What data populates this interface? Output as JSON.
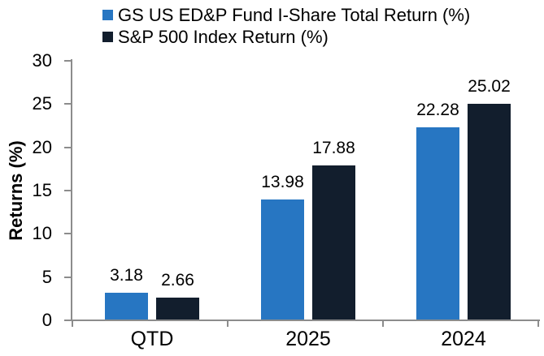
{
  "chart_data": {
    "type": "bar",
    "title": "",
    "xlabel": "",
    "ylabel": "Returns (%)",
    "ylim": [
      0,
      30
    ],
    "yticks": [
      0,
      5,
      10,
      15,
      20,
      25,
      30
    ],
    "grid": false,
    "legend_position": "top",
    "axis_color": "#8c8c8c",
    "text_color": "#000000",
    "categories": [
      "QTD",
      "2025",
      "2024"
    ],
    "series": [
      {
        "key": "fund",
        "name": "GS US ED&P Fund I-Share Total Return (%)",
        "color": "#2776c2",
        "values": [
          3.18,
          13.98,
          22.28
        ],
        "labels": [
          "3.18",
          "13.98",
          "22.28"
        ]
      },
      {
        "key": "sp500",
        "name": "S&P 500 Index Return (%)",
        "color": "#121e2d",
        "values": [
          2.66,
          17.88,
          25.02
        ],
        "labels": [
          "2.66",
          "17.88",
          "25.02"
        ]
      }
    ]
  }
}
